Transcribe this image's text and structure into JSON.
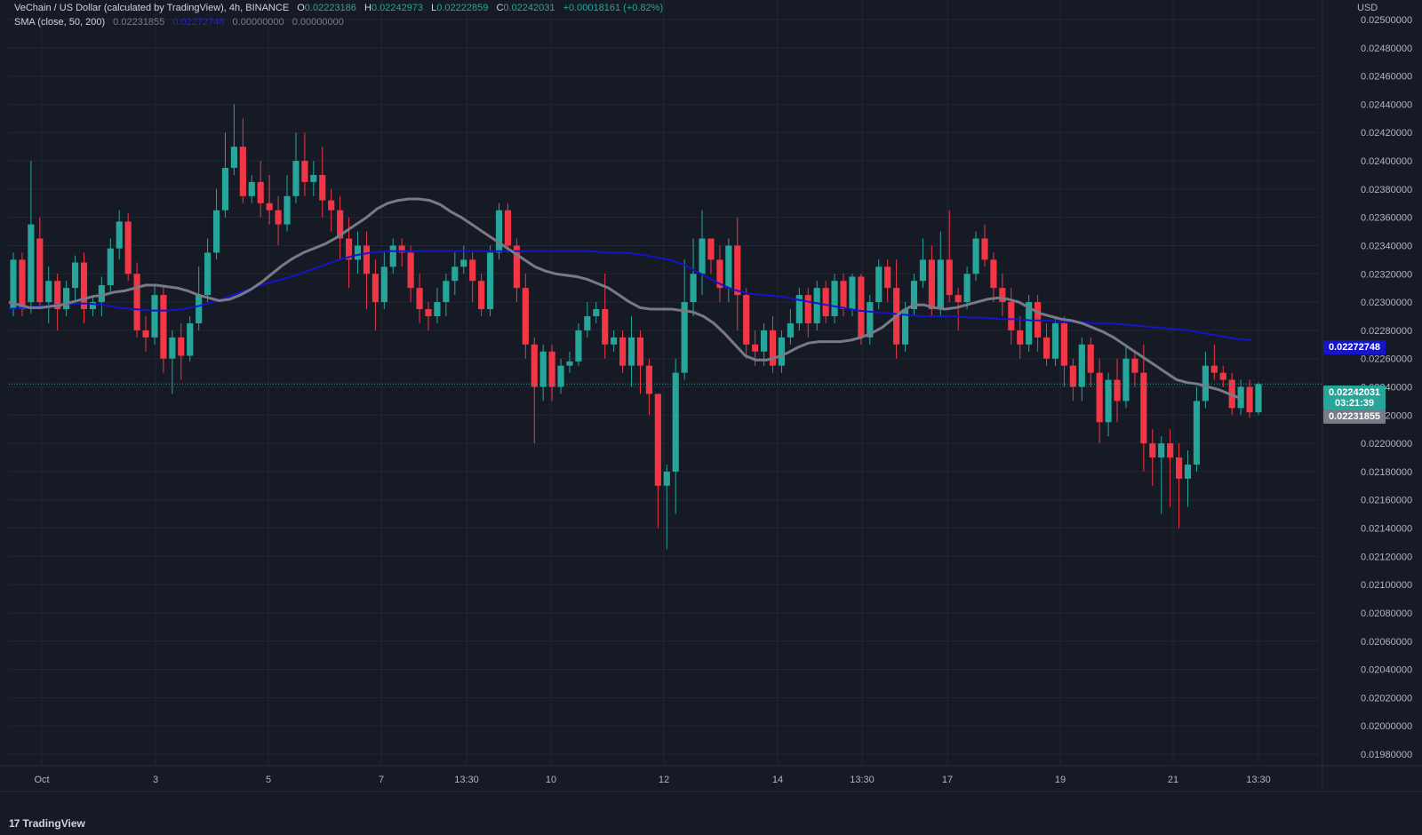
{
  "header": {
    "symbol_title": "VeChain / US Dollar (calculated by TradingView), 4h, BINANCE",
    "ohlc": [
      {
        "label": "O",
        "value": "0.02223186"
      },
      {
        "label": "H",
        "value": "0.02242973"
      },
      {
        "label": "L",
        "value": "0.02222859"
      },
      {
        "label": "C",
        "value": "0.02242031"
      }
    ],
    "change": "+0.00018161 (+0.82%)",
    "indicator_label": "SMA (close, 50, 200)",
    "indicator_values": [
      "0.02231855",
      "0.02272748",
      "0.00000000",
      "0.00000000"
    ]
  },
  "axis": {
    "currency": "USD",
    "price_ticks": [
      "0.02500000",
      "0.02480000",
      "0.02460000",
      "0.02440000",
      "0.02420000",
      "0.02400000",
      "0.02380000",
      "0.02360000",
      "0.02340000",
      "0.02320000",
      "0.02300000",
      "0.02280000",
      "0.02260000",
      "0.02240000",
      "0.02220000",
      "0.02200000",
      "0.02180000",
      "0.02160000",
      "0.02140000",
      "0.02120000",
      "0.02100000",
      "0.02080000",
      "0.02060000",
      "0.02040000",
      "0.02020000",
      "0.02000000",
      "0.01980000"
    ],
    "time_ticks": [
      "Oct",
      "3",
      "5",
      "7",
      "13:30",
      "10",
      "12",
      "14",
      "13:30",
      "17",
      "19",
      "21",
      "13:30"
    ]
  },
  "price_labels": {
    "sma200": "0.02272748",
    "last_price": "0.02242031",
    "countdown": "03:21:39",
    "sma50": "0.02231855"
  },
  "branding": {
    "name": "TradingView",
    "logo": "17"
  },
  "colors": {
    "background": "#161a25",
    "up": "#26a69a",
    "down": "#f23645",
    "sma50": "#787b86",
    "sma200": "#1414c8",
    "grid": "#232734"
  },
  "chart_data": {
    "type": "candlestick",
    "title": "VeChain / US Dollar (calculated by TradingView), 4h, BINANCE",
    "ylabel": "USD",
    "ylim": [
      0.0197,
      0.0251
    ],
    "x_ticks": [
      "Oct",
      "3",
      "5",
      "7",
      "13:30",
      "10",
      "12",
      "14",
      "13:30",
      "17",
      "19",
      "21",
      "13:30"
    ],
    "candles": [
      [
        0.02295,
        0.0233,
        0.0229,
        0.02335
      ],
      [
        0.0233,
        0.02295,
        0.0229,
        0.02335
      ],
      [
        0.023,
        0.02355,
        0.02292,
        0.024
      ],
      [
        0.02345,
        0.023,
        0.02295,
        0.0236
      ],
      [
        0.023,
        0.02315,
        0.02285,
        0.02325
      ],
      [
        0.02315,
        0.02295,
        0.0228,
        0.0232
      ],
      [
        0.02295,
        0.0231,
        0.0229,
        0.02315
      ],
      [
        0.0231,
        0.02328,
        0.023,
        0.02333
      ],
      [
        0.02328,
        0.02295,
        0.02285,
        0.02335
      ],
      [
        0.02295,
        0.023,
        0.0229,
        0.02305
      ],
      [
        0.023,
        0.02312,
        0.0229,
        0.02318
      ],
      [
        0.02312,
        0.02338,
        0.02306,
        0.02345
      ],
      [
        0.02338,
        0.02357,
        0.0233,
        0.02365
      ],
      [
        0.02357,
        0.0232,
        0.02315,
        0.02363
      ],
      [
        0.0232,
        0.0228,
        0.02275,
        0.02328
      ],
      [
        0.0228,
        0.02275,
        0.02265,
        0.0229
      ],
      [
        0.02275,
        0.02305,
        0.0227,
        0.02312
      ],
      [
        0.02305,
        0.0226,
        0.0225,
        0.02312
      ],
      [
        0.0226,
        0.02275,
        0.02235,
        0.0228
      ],
      [
        0.02275,
        0.02262,
        0.02245,
        0.02285
      ],
      [
        0.02262,
        0.02285,
        0.02258,
        0.0229
      ],
      [
        0.02285,
        0.02305,
        0.0228,
        0.02325
      ],
      [
        0.02305,
        0.02335,
        0.023,
        0.02345
      ],
      [
        0.02335,
        0.02365,
        0.0233,
        0.0238
      ],
      [
        0.02365,
        0.02395,
        0.0236,
        0.0242
      ],
      [
        0.02395,
        0.0241,
        0.0239,
        0.0244
      ],
      [
        0.0241,
        0.02375,
        0.0237,
        0.0243
      ],
      [
        0.02375,
        0.02385,
        0.0237,
        0.0239
      ],
      [
        0.02385,
        0.0237,
        0.0236,
        0.024
      ],
      [
        0.0237,
        0.02365,
        0.02355,
        0.0239
      ],
      [
        0.02365,
        0.02355,
        0.0234,
        0.02375
      ],
      [
        0.02355,
        0.02375,
        0.0235,
        0.0239
      ],
      [
        0.02375,
        0.024,
        0.0237,
        0.0242
      ],
      [
        0.024,
        0.02385,
        0.02375,
        0.0242
      ],
      [
        0.02385,
        0.0239,
        0.02375,
        0.024
      ],
      [
        0.0239,
        0.02372,
        0.0236,
        0.0241
      ],
      [
        0.02372,
        0.02365,
        0.0235,
        0.0238
      ],
      [
        0.02365,
        0.02345,
        0.0233,
        0.02375
      ],
      [
        0.02345,
        0.0233,
        0.0231,
        0.0236
      ],
      [
        0.0233,
        0.0234,
        0.0232,
        0.0235
      ],
      [
        0.0234,
        0.0232,
        0.02295,
        0.0235
      ],
      [
        0.0232,
        0.023,
        0.0228,
        0.0233
      ],
      [
        0.023,
        0.02325,
        0.02295,
        0.02335
      ],
      [
        0.02325,
        0.0234,
        0.0232,
        0.02345
      ],
      [
        0.0234,
        0.02335,
        0.02325,
        0.02345
      ],
      [
        0.02335,
        0.0231,
        0.023,
        0.0234
      ],
      [
        0.0231,
        0.02295,
        0.02285,
        0.0232
      ],
      [
        0.02295,
        0.0229,
        0.0228,
        0.023
      ],
      [
        0.0229,
        0.023,
        0.02285,
        0.0231
      ],
      [
        0.023,
        0.02315,
        0.0229,
        0.0232
      ],
      [
        0.02315,
        0.02325,
        0.02305,
        0.02335
      ],
      [
        0.02325,
        0.0233,
        0.0232,
        0.0234
      ],
      [
        0.0233,
        0.02315,
        0.023,
        0.02335
      ],
      [
        0.02315,
        0.02295,
        0.0229,
        0.0232
      ],
      [
        0.02295,
        0.02335,
        0.0229,
        0.0234
      ],
      [
        0.02335,
        0.02365,
        0.0233,
        0.0237
      ],
      [
        0.02365,
        0.0234,
        0.02335,
        0.0237
      ],
      [
        0.0234,
        0.0231,
        0.023,
        0.02345
      ],
      [
        0.0231,
        0.0227,
        0.0226,
        0.0232
      ],
      [
        0.0227,
        0.0224,
        0.022,
        0.02275
      ],
      [
        0.0224,
        0.02265,
        0.0223,
        0.0227
      ],
      [
        0.02265,
        0.0224,
        0.0223,
        0.0227
      ],
      [
        0.0224,
        0.02255,
        0.02235,
        0.0226
      ],
      [
        0.02255,
        0.02258,
        0.0225,
        0.02265
      ],
      [
        0.02258,
        0.0228,
        0.02255,
        0.02285
      ],
      [
        0.0228,
        0.0229,
        0.02275,
        0.023
      ],
      [
        0.0229,
        0.02295,
        0.02285,
        0.023
      ],
      [
        0.02295,
        0.0227,
        0.0226,
        0.0232
      ],
      [
        0.0227,
        0.02275,
        0.02265,
        0.0228
      ],
      [
        0.02275,
        0.02255,
        0.0225,
        0.0228
      ],
      [
        0.02255,
        0.02275,
        0.0224,
        0.0229
      ],
      [
        0.02275,
        0.02255,
        0.02235,
        0.0228
      ],
      [
        0.02255,
        0.02235,
        0.0222,
        0.0226
      ],
      [
        0.02235,
        0.0217,
        0.0214,
        0.02235
      ],
      [
        0.0217,
        0.0218,
        0.02125,
        0.02185
      ],
      [
        0.0218,
        0.0225,
        0.0215,
        0.0226
      ],
      [
        0.0225,
        0.023,
        0.02245,
        0.0233
      ],
      [
        0.023,
        0.0232,
        0.0229,
        0.02345
      ],
      [
        0.0232,
        0.02345,
        0.02305,
        0.02365
      ],
      [
        0.02345,
        0.0233,
        0.0232,
        0.02345
      ],
      [
        0.0233,
        0.0231,
        0.023,
        0.0234
      ],
      [
        0.0231,
        0.0234,
        0.023,
        0.02345
      ],
      [
        0.0234,
        0.02305,
        0.0228,
        0.0236
      ],
      [
        0.02305,
        0.0227,
        0.0226,
        0.0231
      ],
      [
        0.0227,
        0.02265,
        0.02255,
        0.0228
      ],
      [
        0.02265,
        0.0228,
        0.02255,
        0.02285
      ],
      [
        0.0228,
        0.02255,
        0.0225,
        0.0229
      ],
      [
        0.02255,
        0.02275,
        0.0225,
        0.0228
      ],
      [
        0.02275,
        0.02285,
        0.0227,
        0.02295
      ],
      [
        0.02285,
        0.02305,
        0.0228,
        0.0231
      ],
      [
        0.02305,
        0.02285,
        0.02275,
        0.0231
      ],
      [
        0.02285,
        0.0231,
        0.0228,
        0.02315
      ],
      [
        0.0231,
        0.0229,
        0.02285,
        0.02315
      ],
      [
        0.0229,
        0.02315,
        0.02285,
        0.0232
      ],
      [
        0.02315,
        0.02295,
        0.0229,
        0.0232
      ],
      [
        0.02295,
        0.02318,
        0.0229,
        0.0232
      ],
      [
        0.02318,
        0.02275,
        0.0227,
        0.0232
      ],
      [
        0.02275,
        0.023,
        0.0227,
        0.02305
      ],
      [
        0.023,
        0.02325,
        0.02295,
        0.0233
      ],
      [
        0.02325,
        0.0231,
        0.023,
        0.0233
      ],
      [
        0.0231,
        0.0227,
        0.0226,
        0.0233
      ],
      [
        0.0227,
        0.02295,
        0.02265,
        0.023
      ],
      [
        0.02295,
        0.02315,
        0.0229,
        0.0232
      ],
      [
        0.02315,
        0.0233,
        0.0231,
        0.02345
      ],
      [
        0.0233,
        0.02295,
        0.0229,
        0.0234
      ],
      [
        0.02295,
        0.0233,
        0.0229,
        0.0235
      ],
      [
        0.0233,
        0.02305,
        0.023,
        0.02365
      ],
      [
        0.02305,
        0.023,
        0.0228,
        0.0231
      ],
      [
        0.023,
        0.0232,
        0.02295,
        0.02325
      ],
      [
        0.0232,
        0.02345,
        0.02315,
        0.0235
      ],
      [
        0.02345,
        0.0233,
        0.02325,
        0.02355
      ],
      [
        0.0233,
        0.0231,
        0.023,
        0.02335
      ],
      [
        0.0231,
        0.023,
        0.0229,
        0.0232
      ],
      [
        0.023,
        0.0228,
        0.0227,
        0.0231
      ],
      [
        0.0228,
        0.0227,
        0.0226,
        0.0229
      ],
      [
        0.0227,
        0.023,
        0.02265,
        0.02305
      ],
      [
        0.023,
        0.02275,
        0.02265,
        0.02305
      ],
      [
        0.02275,
        0.0226,
        0.02255,
        0.02285
      ],
      [
        0.0226,
        0.02285,
        0.02255,
        0.0229
      ],
      [
        0.02285,
        0.02255,
        0.0224,
        0.0229
      ],
      [
        0.02255,
        0.0224,
        0.0223,
        0.0226
      ],
      [
        0.0224,
        0.0227,
        0.0223,
        0.02275
      ],
      [
        0.0227,
        0.0225,
        0.0224,
        0.02275
      ],
      [
        0.0225,
        0.02215,
        0.022,
        0.0226
      ],
      [
        0.02215,
        0.02245,
        0.02205,
        0.0225
      ],
      [
        0.02245,
        0.0223,
        0.02215,
        0.0226
      ],
      [
        0.0223,
        0.0226,
        0.02225,
        0.0227
      ],
      [
        0.0226,
        0.0225,
        0.0224,
        0.02265
      ],
      [
        0.0225,
        0.022,
        0.0218,
        0.0227
      ],
      [
        0.022,
        0.0219,
        0.0217,
        0.0221
      ],
      [
        0.0219,
        0.022,
        0.0215,
        0.02205
      ],
      [
        0.022,
        0.0219,
        0.02155,
        0.0221
      ],
      [
        0.0219,
        0.02175,
        0.0214,
        0.022
      ],
      [
        0.02175,
        0.02185,
        0.02155,
        0.02195
      ],
      [
        0.02185,
        0.0223,
        0.0218,
        0.0224
      ],
      [
        0.0223,
        0.02255,
        0.02225,
        0.02265
      ],
      [
        0.02255,
        0.0225,
        0.02245,
        0.0227
      ],
      [
        0.0225,
        0.02245,
        0.0224,
        0.02255
      ],
      [
        0.02245,
        0.02225,
        0.0222,
        0.0225
      ],
      [
        0.02225,
        0.0224,
        0.0222,
        0.02245
      ],
      [
        0.0224,
        0.02222,
        0.02218,
        0.02245
      ],
      [
        0.02222,
        0.02242,
        0.0222,
        0.02243
      ]
    ],
    "sma50": [
      0.023,
      0.02298,
      0.02296,
      0.02296,
      0.02297,
      0.02298,
      0.023,
      0.02302,
      0.02304,
      0.02305,
      0.02307,
      0.02308,
      0.0231,
      0.02312,
      0.02312,
      0.02311,
      0.0231,
      0.02308,
      0.02305,
      0.02303,
      0.02301,
      0.02302,
      0.02305,
      0.02309,
      0.02314,
      0.0232,
      0.02326,
      0.02331,
      0.02335,
      0.02338,
      0.02341,
      0.02345,
      0.0235,
      0.02355,
      0.0236,
      0.02366,
      0.0237,
      0.02372,
      0.02373,
      0.02373,
      0.02372,
      0.02369,
      0.02364,
      0.0236,
      0.02355,
      0.0235,
      0.02345,
      0.0234,
      0.02335,
      0.0233,
      0.02325,
      0.02322,
      0.0232,
      0.02319,
      0.02318,
      0.02316,
      0.02313,
      0.0231,
      0.02305,
      0.023,
      0.02296,
      0.02295,
      0.02295,
      0.02295,
      0.02294,
      0.02293,
      0.0229,
      0.02285,
      0.02278,
      0.0227,
      0.02262,
      0.02259,
      0.02259,
      0.02261,
      0.02264,
      0.02268,
      0.02271,
      0.02272,
      0.02272,
      0.02272,
      0.02273,
      0.02275,
      0.02278,
      0.02282,
      0.02288,
      0.02294,
      0.02298,
      0.02298,
      0.02296,
      0.02295,
      0.02296,
      0.02298,
      0.023,
      0.02302,
      0.02303,
      0.02302,
      0.023,
      0.02296,
      0.02292,
      0.0229,
      0.02288,
      0.02287,
      0.02285,
      0.02282,
      0.02279,
      0.02275,
      0.0227,
      0.02265,
      0.0226,
      0.02255,
      0.0225,
      0.02245,
      0.02243,
      0.02242,
      0.0224,
      0.02238,
      0.02235,
      0.02232
    ],
    "sma200": [
      0.02295,
      0.02296,
      0.02297,
      0.02298,
      0.02299,
      0.02299,
      0.02298,
      0.02296,
      0.02295,
      0.02294,
      0.02294,
      0.02295,
      0.02297,
      0.023,
      0.02304,
      0.02308,
      0.02312,
      0.02315,
      0.02318,
      0.02322,
      0.02326,
      0.0233,
      0.02333,
      0.02335,
      0.02336,
      0.02336,
      0.02336,
      0.02336,
      0.02336,
      0.02336,
      0.02336,
      0.02336,
      0.02336,
      0.02336,
      0.02336,
      0.02336,
      0.02336,
      0.02336,
      0.02335,
      0.02335,
      0.02334,
      0.02332,
      0.0233,
      0.02326,
      0.0232,
      0.02314,
      0.02309,
      0.02306,
      0.02305,
      0.02304,
      0.02302,
      0.023,
      0.02298,
      0.02296,
      0.02294,
      0.02293,
      0.02292,
      0.02291,
      0.0229,
      0.0229,
      0.0229,
      0.02289,
      0.02289,
      0.02288,
      0.02288,
      0.02287,
      0.02287,
      0.02286,
      0.02286,
      0.02285,
      0.02285,
      0.02284,
      0.02283,
      0.02282,
      0.02281,
      0.0228,
      0.02278,
      0.02276,
      0.02274,
      0.02273
    ]
  }
}
